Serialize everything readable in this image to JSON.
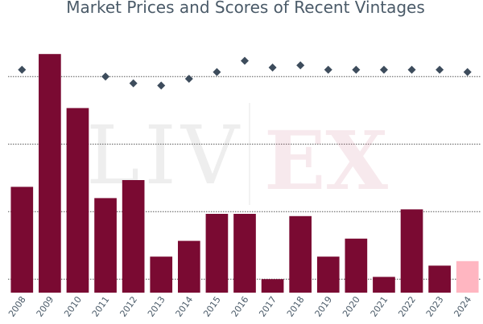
{
  "chart_data": {
    "type": "bar",
    "title": "Market Prices and Scores of Recent Vintages",
    "watermark": {
      "left": "LIV",
      "right": "EX"
    },
    "categories": [
      "2008",
      "2009",
      "2010",
      "2011",
      "2012",
      "2013",
      "2014",
      "2015",
      "2016",
      "2017",
      "2018",
      "2019",
      "2020",
      "2021",
      "2022",
      "2023",
      "2024"
    ],
    "series": [
      {
        "kind": "bar",
        "values": [
          41,
          100,
          76,
          36,
          44,
          10,
          17,
          29,
          29,
          0,
          28,
          10,
          18,
          1,
          31,
          6,
          8
        ],
        "bar_colors": [
          "#7a0a32",
          "#7a0a32",
          "#7a0a32",
          "#7a0a32",
          "#7a0a32",
          "#7a0a32",
          "#7a0a32",
          "#7a0a32",
          "#7a0a32",
          "#7a0a32",
          "#7a0a32",
          "#7a0a32",
          "#7a0a32",
          "#7a0a32",
          "#7a0a32",
          "#7a0a32",
          "#ffb6c1"
        ]
      },
      {
        "kind": "scatter",
        "values": [
          93,
          null,
          null,
          90,
          87,
          86,
          89,
          92,
          97,
          94,
          95,
          93,
          93,
          93,
          93,
          93,
          92
        ],
        "marker": "diamond",
        "color": "#3d4c5c"
      }
    ],
    "ylim": [
      -6,
      114
    ],
    "grid": "horizontal-dotted",
    "colors": {
      "bar": "#7a0a32",
      "bar_highlight": "#ffb6c1",
      "marker": "#3d4c5c",
      "marker_on_bar": "#8a96a0",
      "text": "#4a5a68"
    }
  }
}
